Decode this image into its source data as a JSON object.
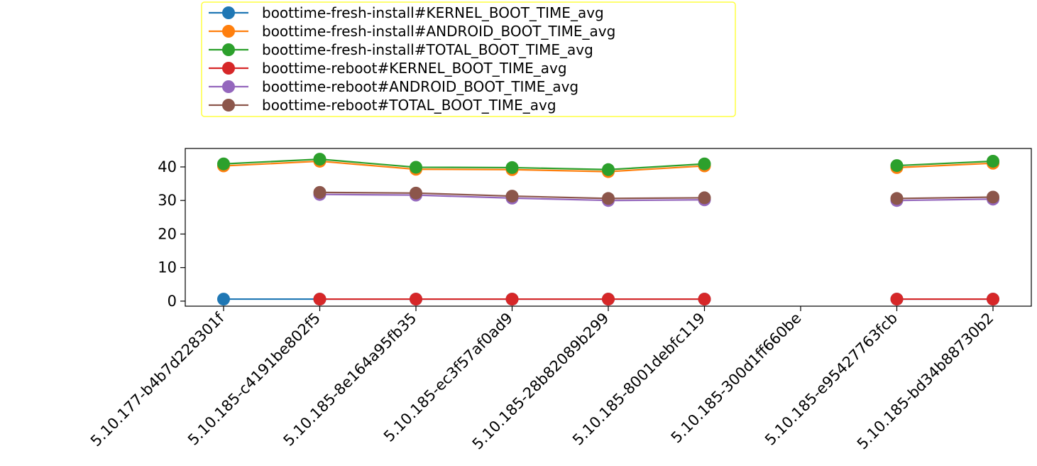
{
  "chart_data": {
    "type": "line",
    "title": "",
    "xlabel": "",
    "ylabel": "",
    "categories": [
      "5.10.177-b4b7d228301f",
      "5.10.185-c4191be802f5",
      "5.10.185-8e164a95fb35",
      "5.10.185-ec3f57af0ad9",
      "5.10.185-28b82089b299",
      "5.10.185-8001debfc119",
      "5.10.185-300d1ff660be",
      "5.10.185-e95427763fcb",
      "5.10.185-bd34b88730b2"
    ],
    "ylim": [
      -1.5,
      45.5
    ],
    "yticks": [
      "0",
      "10",
      "20",
      "30",
      "40"
    ],
    "legend_position": "top-left, above plot",
    "series": [
      {
        "name": "boottime-fresh-install#KERNEL_BOOT_TIME_avg",
        "color": "#1f77b4",
        "values": [
          0.6,
          0.6,
          0.6,
          0.6,
          0.6,
          0.6,
          null,
          0.6,
          0.6
        ]
      },
      {
        "name": "boottime-fresh-install#ANDROID_BOOT_TIME_avg",
        "color": "#ff7f0e",
        "values": [
          40.3,
          41.7,
          39.3,
          39.2,
          38.6,
          40.3,
          null,
          39.8,
          41.1
        ]
      },
      {
        "name": "boottime-fresh-install#TOTAL_BOOT_TIME_avg",
        "color": "#2ca02c",
        "values": [
          40.9,
          42.3,
          39.9,
          39.8,
          39.2,
          40.9,
          null,
          40.4,
          41.7
        ]
      },
      {
        "name": "boottime-reboot#KERNEL_BOOT_TIME_avg",
        "color": "#d62728",
        "values": [
          null,
          0.6,
          0.6,
          0.6,
          0.6,
          0.6,
          null,
          0.6,
          0.6
        ]
      },
      {
        "name": "boottime-reboot#ANDROID_BOOT_TIME_avg",
        "color": "#9467bd",
        "values": [
          null,
          31.8,
          31.6,
          30.7,
          30.0,
          30.2,
          null,
          30.0,
          30.4
        ]
      },
      {
        "name": "boottime-reboot#TOTAL_BOOT_TIME_avg",
        "color": "#8c564b",
        "values": [
          null,
          32.4,
          32.2,
          31.3,
          30.6,
          30.8,
          null,
          30.6,
          31.0
        ]
      }
    ]
  }
}
